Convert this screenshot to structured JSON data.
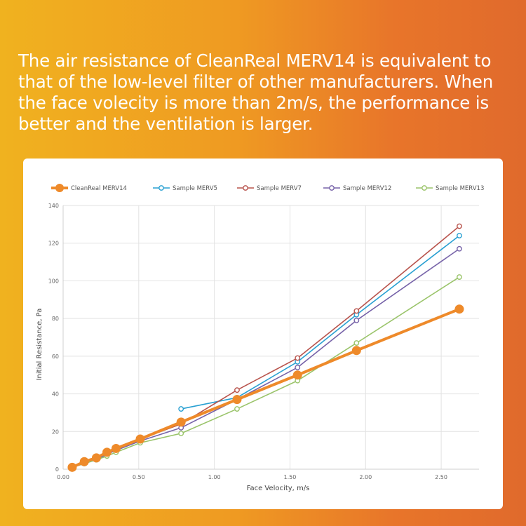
{
  "headline": "The air resistance of CleanReal MERV14 is equivalent to that of the low-level filter of other manufacturers. When the face volecity is more than 2m/s, the performance is better and the ventilation is larger.",
  "chart_data": {
    "type": "line",
    "title": "",
    "xlabel": "Face Velocity,  m/s",
    "ylabel": "Initial Resistance, Pa",
    "xlim": [
      0,
      2.75
    ],
    "ylim": [
      0,
      140
    ],
    "xticks": [
      "0.00",
      "0.50",
      "1.00",
      "1.50",
      "2.00",
      "2.50"
    ],
    "xtick_values": [
      0,
      0.5,
      1.0,
      1.5,
      2.0,
      2.5
    ],
    "yticks": [
      "0",
      "20",
      "40",
      "60",
      "80",
      "100",
      "120",
      "140"
    ],
    "ytick_values": [
      0,
      20,
      40,
      60,
      80,
      100,
      120,
      140
    ],
    "grid": true,
    "legend_position": "top",
    "series": [
      {
        "name": "CleanReal MERV14",
        "color": "#ee8a2a",
        "marker": "filled-circle",
        "x": [
          0.06,
          0.14,
          0.22,
          0.29,
          0.35,
          0.51,
          0.78,
          1.15,
          1.55,
          1.94,
          2.62
        ],
        "y": [
          1,
          4,
          6,
          9,
          11,
          16,
          25,
          37,
          50,
          63,
          85
        ]
      },
      {
        "name": "Sample MERV5",
        "color": "#29a0d2",
        "marker": "open-circle",
        "x": [
          0.78,
          1.15,
          1.55,
          1.94,
          2.62
        ],
        "y": [
          32,
          38,
          57,
          82,
          124
        ]
      },
      {
        "name": "Sample MERV7",
        "color": "#b8534c",
        "marker": "open-circle",
        "x": [
          0.06,
          0.14,
          0.22,
          0.29,
          0.35,
          0.51,
          0.78,
          1.15,
          1.55,
          1.94,
          2.62
        ],
        "y": [
          1,
          4,
          6,
          9,
          11,
          16,
          24,
          42,
          59,
          84,
          129
        ]
      },
      {
        "name": "Sample MERV12",
        "color": "#7662a8",
        "marker": "open-circle",
        "x": [
          0.06,
          0.14,
          0.22,
          0.29,
          0.35,
          0.51,
          0.78,
          1.15,
          1.55,
          1.94,
          2.62
        ],
        "y": [
          1,
          3,
          5,
          8,
          10,
          15,
          22,
          37,
          54,
          79,
          117
        ]
      },
      {
        "name": "Sample MERV13",
        "color": "#9ac46a",
        "marker": "open-circle",
        "x": [
          0.06,
          0.14,
          0.22,
          0.29,
          0.35,
          0.51,
          0.78,
          1.15,
          1.55,
          1.94,
          2.62
        ],
        "y": [
          1,
          3,
          5,
          7,
          9,
          14,
          19,
          32,
          47,
          67,
          102
        ]
      }
    ]
  }
}
